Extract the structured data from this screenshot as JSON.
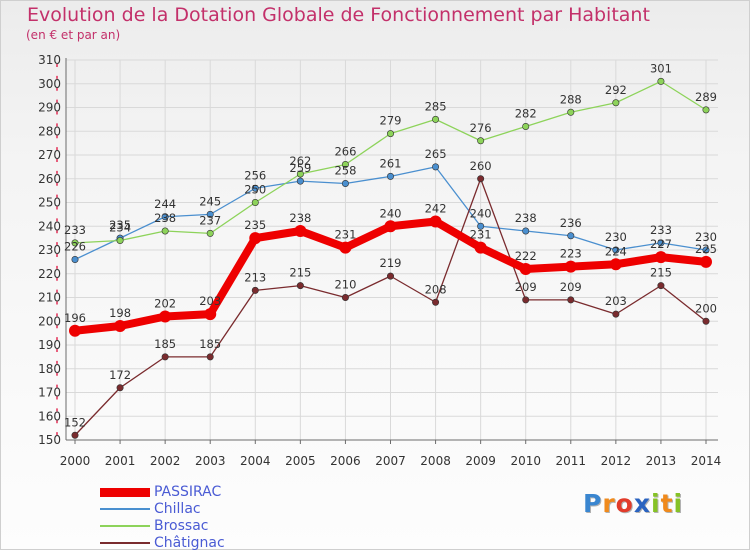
{
  "header": {
    "title": "Evolution de la Dotation Globale de Fonctionnement par Habitant",
    "subtitle": "(en € et par an)"
  },
  "colors": {
    "title": "#c3306a",
    "legend_text": "#4a5bd4",
    "axis": "#6b6b6b",
    "grid": "#d9d9d9",
    "tick_marks": "#e0204a"
  },
  "logo": {
    "text": "Proxiti",
    "letters": [
      {
        "ch": "P",
        "color": "#3a86d0"
      },
      {
        "ch": "r",
        "color": "#f08a1c"
      },
      {
        "ch": "o",
        "color": "#e23b2a"
      },
      {
        "ch": "x",
        "color": "#2a63c0"
      },
      {
        "ch": "i",
        "color": "#86c226"
      },
      {
        "ch": "t",
        "color": "#f08a1c"
      },
      {
        "ch": "i",
        "color": "#86c226"
      }
    ]
  },
  "chart_data": {
    "type": "line",
    "title": "Evolution de la Dotation Globale de Fonctionnement par Habitant",
    "subtitle": "(en € et par an)",
    "xlabel": "",
    "ylabel": "",
    "ylim": [
      150,
      310
    ],
    "ytick_step": 10,
    "grid": true,
    "legend_position": "bottom-left",
    "categories": [
      "2000",
      "2001",
      "2002",
      "2003",
      "2004",
      "2005",
      "2006",
      "2007",
      "2008",
      "2009",
      "2010",
      "2011",
      "2012",
      "2013",
      "2014"
    ],
    "series": [
      {
        "name": "PASSIRAC",
        "color": "#ee0000",
        "emphasis": "thick",
        "values": [
          196,
          198,
          202,
          203,
          235,
          238,
          231,
          240,
          242,
          231,
          222,
          223,
          224,
          227,
          225
        ],
        "labels": [
          "196",
          "198",
          "202",
          "203",
          "235",
          "238",
          "231",
          "240",
          "242",
          "231",
          "222",
          "223",
          "224",
          "227",
          "225"
        ]
      },
      {
        "name": "Chillac",
        "color": "#4a8fcf",
        "emphasis": "normal",
        "values": [
          226,
          235,
          244,
          245,
          256,
          259,
          258,
          261,
          265,
          240,
          238,
          236,
          230,
          233,
          230
        ],
        "labels": [
          "226",
          "235",
          "244",
          "245",
          "256",
          "259",
          "258",
          "261",
          "265",
          "240",
          "238",
          "236",
          "230",
          "233",
          "230"
        ]
      },
      {
        "name": "Brossac",
        "color": "#8dd35a",
        "emphasis": "normal",
        "values": [
          233,
          234,
          238,
          237,
          250,
          262,
          266,
          279,
          285,
          276,
          282,
          288,
          292,
          301,
          289
        ],
        "labels": [
          "233",
          "234",
          "238",
          "237",
          "250",
          "262",
          "266",
          "279",
          "285",
          "276",
          "282",
          "288",
          "292",
          "301",
          "289"
        ]
      },
      {
        "name": "Châtignac",
        "color": "#7a2b2e",
        "emphasis": "normal",
        "values": [
          152,
          172,
          185,
          185,
          213,
          215,
          210,
          219,
          208,
          260,
          209,
          209,
          203,
          215,
          200
        ],
        "labels": [
          "152",
          "172",
          "185",
          "185",
          "213",
          "215",
          "210",
          "219",
          "208",
          "260",
          "209",
          "209",
          "203",
          "215",
          "200"
        ]
      }
    ]
  }
}
